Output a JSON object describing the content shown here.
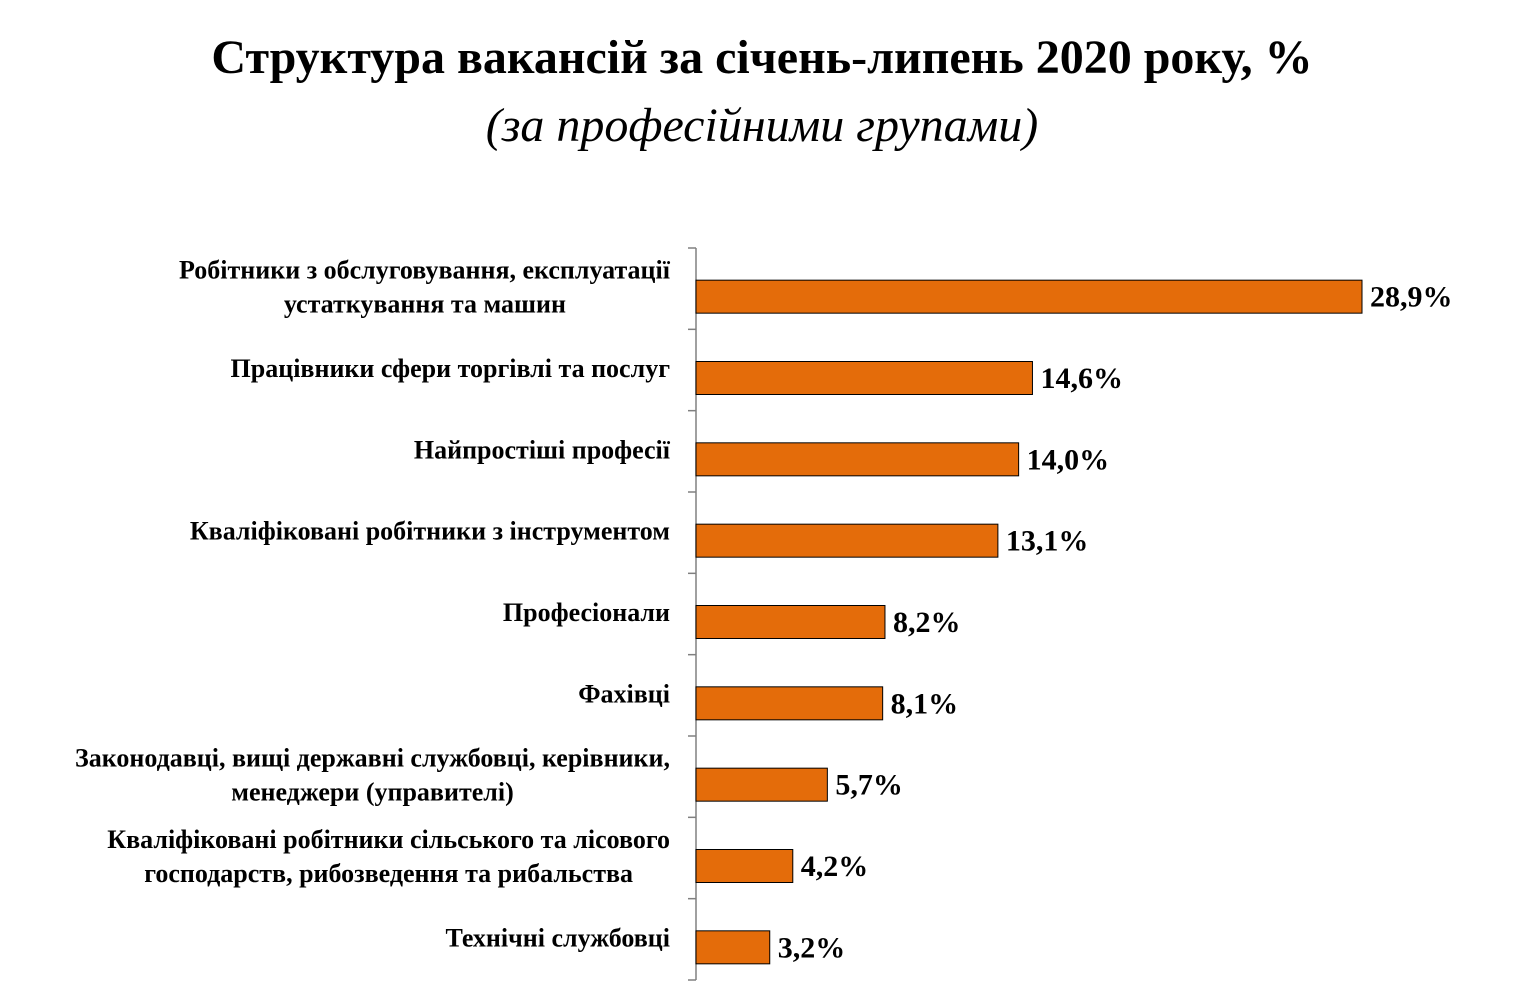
{
  "title": "Структура вакансій за січень-липень 2020 року, %",
  "subtitle": "(за професійними групами)",
  "chart_data": {
    "type": "bar",
    "orientation": "horizontal",
    "title": "Структура вакансій за січень-липень 2020 року, %",
    "subtitle": "(за професійними групами)",
    "categories": [
      [
        "Робітники з обслуговування, експлуатації",
        "устаткування та машин"
      ],
      [
        "Працівники сфери торгівлі та послуг"
      ],
      [
        "Найпростіші професії"
      ],
      [
        "Кваліфіковані робітники з інструментом"
      ],
      [
        "Професіонали"
      ],
      [
        "Фахівці"
      ],
      [
        "Законодавці, вищі державні службовці, керівники,",
        "менеджери (управителі)"
      ],
      [
        "Кваліфіковані робітники сільського та лісового",
        "господарств, рибозведення та рибальства"
      ],
      [
        "Технічні службовці"
      ]
    ],
    "values": [
      28.9,
      14.6,
      14.0,
      13.1,
      8.2,
      8.1,
      5.7,
      4.2,
      3.2
    ],
    "value_labels": [
      "28,9%",
      "14,6%",
      "14,0%",
      "13,1%",
      "8,2%",
      "8,1%",
      "5,7%",
      "4,2%",
      "3,2%"
    ],
    "bar_color": "#E46C0A",
    "bar_stroke": "#000000",
    "grid": false,
    "legend": "none"
  }
}
